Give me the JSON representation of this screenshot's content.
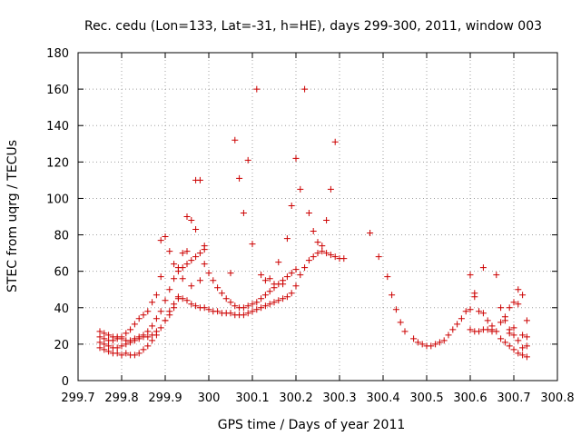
{
  "chart_data": {
    "type": "scatter",
    "title": "Rec. cedu (Lon=133, Lat=-31, h=HE), days 299-300, 2011, window 003",
    "xlabel": "GPS time / Days of year 2011",
    "ylabel": "STEC from uqrg / TECUs",
    "xlim": [
      299.7,
      300.8
    ],
    "ylim": [
      0,
      180
    ],
    "xticks": [
      "299.7",
      "299.8",
      "299.9",
      "300",
      "300.1",
      "300.2",
      "300.3",
      "300.4",
      "300.5",
      "300.6",
      "300.7",
      "300.8"
    ],
    "yticks": [
      "0",
      "20",
      "40",
      "60",
      "80",
      "100",
      "120",
      "140",
      "160",
      "180"
    ],
    "grid": true,
    "marker": "plus",
    "color": "#cc0000",
    "series": [
      {
        "x": [
          299.75,
          299.76,
          299.77,
          299.78,
          299.79,
          299.8,
          299.81,
          299.82,
          299.83,
          299.84,
          299.85,
          299.86,
          299.87,
          299.88,
          299.89,
          299.9,
          299.91,
          299.92,
          299.93,
          299.94,
          299.95,
          299.96,
          299.97,
          299.98,
          299.99,
          300.0,
          300.01,
          300.02,
          300.03,
          300.04,
          300.05,
          300.06,
          300.07,
          300.08,
          300.09,
          300.1,
          300.11,
          300.12,
          300.13,
          300.14,
          300.15,
          300.16,
          300.17,
          300.18,
          300.19,
          300.2,
          300.21,
          300.22,
          300.23,
          300.24,
          300.25,
          300.26,
          300.27,
          300.28,
          300.29,
          300.3,
          300.31
        ],
        "y": [
          18,
          17,
          16,
          15,
          15,
          14,
          15,
          14,
          14,
          15,
          17,
          19,
          22,
          25,
          29,
          33,
          38,
          42,
          46,
          45,
          44,
          42,
          41,
          40,
          40,
          39,
          38,
          38,
          37,
          37,
          37,
          36,
          36,
          36,
          37,
          38,
          39,
          40,
          41,
          42,
          43,
          44,
          45,
          46,
          48,
          52,
          58,
          62,
          66,
          68,
          70,
          71,
          70,
          69,
          68,
          67,
          67
        ]
      },
      {
        "x": [
          299.75,
          299.76,
          299.77,
          299.78,
          299.79,
          299.8,
          299.81,
          299.82,
          299.83,
          299.84,
          299.85,
          299.86,
          299.87,
          299.88,
          299.89,
          299.9,
          299.91,
          299.92,
          299.93,
          299.94,
          299.95,
          299.96,
          299.97,
          299.98,
          299.99,
          300.0,
          300.01,
          300.02,
          300.03,
          300.04,
          300.05,
          300.06,
          300.07,
          300.08,
          300.09,
          300.1,
          300.11,
          300.12,
          300.13,
          300.14,
          300.15,
          300.16,
          300.17,
          300.18,
          300.19,
          300.2
        ],
        "y": [
          21,
          20,
          19,
          18,
          18,
          19,
          20,
          21,
          22,
          23,
          25,
          27,
          30,
          34,
          38,
          44,
          50,
          56,
          60,
          62,
          64,
          66,
          68,
          70,
          72,
          59,
          55,
          51,
          48,
          45,
          43,
          41,
          40,
          40,
          41,
          42,
          43,
          45,
          47,
          49,
          51,
          53,
          55,
          57,
          59,
          61
        ]
      },
      {
        "x": [
          299.75,
          299.76,
          299.77,
          299.78,
          299.79,
          299.8,
          299.81,
          299.82,
          299.83,
          299.84,
          299.85,
          299.86,
          299.87,
          299.88,
          299.89,
          299.9,
          299.91,
          299.92,
          299.93,
          299.94,
          299.95,
          299.96,
          299.97,
          299.98,
          299.99
        ],
        "y": [
          24,
          23,
          22,
          22,
          23,
          24,
          26,
          28,
          31,
          34,
          36,
          38,
          43,
          47,
          57,
          79,
          71,
          64,
          62,
          70,
          90,
          88,
          110,
          110,
          64
        ]
      },
      {
        "x": [
          299.75,
          299.76,
          299.77,
          299.78,
          299.79,
          299.8,
          299.81,
          299.82,
          299.83,
          299.84,
          299.85,
          299.86,
          299.87,
          299.88,
          299.89,
          299.9,
          299.91,
          299.92,
          299.93,
          299.94,
          299.95,
          299.96,
          299.97,
          299.98,
          299.99
        ],
        "y": [
          27,
          26,
          25,
          24,
          24,
          23,
          22,
          22,
          23,
          24,
          24,
          24,
          25,
          27,
          77,
          33,
          36,
          40,
          45,
          56,
          71,
          52,
          83,
          55,
          74
        ]
      },
      {
        "x": [
          300.05,
          300.06,
          300.07,
          300.08,
          300.09,
          300.1,
          300.11,
          300.12,
          300.13,
          300.14,
          300.15,
          300.16,
          300.17,
          300.18,
          300.19,
          300.2,
          300.21,
          300.22,
          300.23,
          300.24,
          300.25,
          300.26,
          300.27,
          300.28,
          300.29
        ],
        "y": [
          59,
          132,
          111,
          92,
          121,
          75,
          160,
          58,
          55,
          56,
          53,
          65,
          53,
          78,
          96,
          122,
          105,
          160,
          92,
          82,
          76,
          74,
          88,
          105,
          131
        ]
      },
      {
        "x": [
          300.37,
          300.39,
          300.41,
          300.42,
          300.43,
          300.44,
          300.45,
          300.47,
          300.48,
          300.49,
          300.5,
          300.51,
          300.52,
          300.53,
          300.54,
          300.55,
          300.56,
          300.57,
          300.58,
          300.59,
          300.6,
          300.61,
          300.62,
          300.63,
          300.64,
          300.65,
          300.66,
          300.67,
          300.68,
          300.69,
          300.7,
          300.71,
          300.72,
          300.73
        ],
        "y": [
          81,
          68,
          57,
          47,
          39,
          32,
          27,
          23,
          21,
          20,
          19,
          19,
          20,
          21,
          22,
          25,
          28,
          31,
          34,
          38,
          28,
          27,
          27,
          28,
          28,
          27,
          27,
          23,
          21,
          19,
          17,
          15,
          14,
          13
        ]
      },
      {
        "x": [
          300.6,
          300.61,
          300.62,
          300.63,
          300.64,
          300.65,
          300.66,
          300.67,
          300.68,
          300.69,
          300.7,
          300.71,
          300.72,
          300.73
        ],
        "y": [
          58,
          46,
          38,
          62,
          33,
          30,
          58,
          40,
          35,
          28,
          25,
          50,
          47,
          33
        ]
      },
      {
        "x": [
          300.6,
          300.61,
          300.63,
          300.65,
          300.67,
          300.68,
          300.69,
          300.7,
          300.71,
          300.72,
          300.73
        ],
        "y": [
          39,
          48,
          37,
          28,
          32,
          33,
          40,
          43,
          42,
          25,
          24
        ]
      },
      {
        "x": [
          300.69,
          300.7,
          300.71,
          300.72,
          300.73
        ],
        "y": [
          26,
          29,
          22,
          18,
          19
        ]
      }
    ]
  }
}
